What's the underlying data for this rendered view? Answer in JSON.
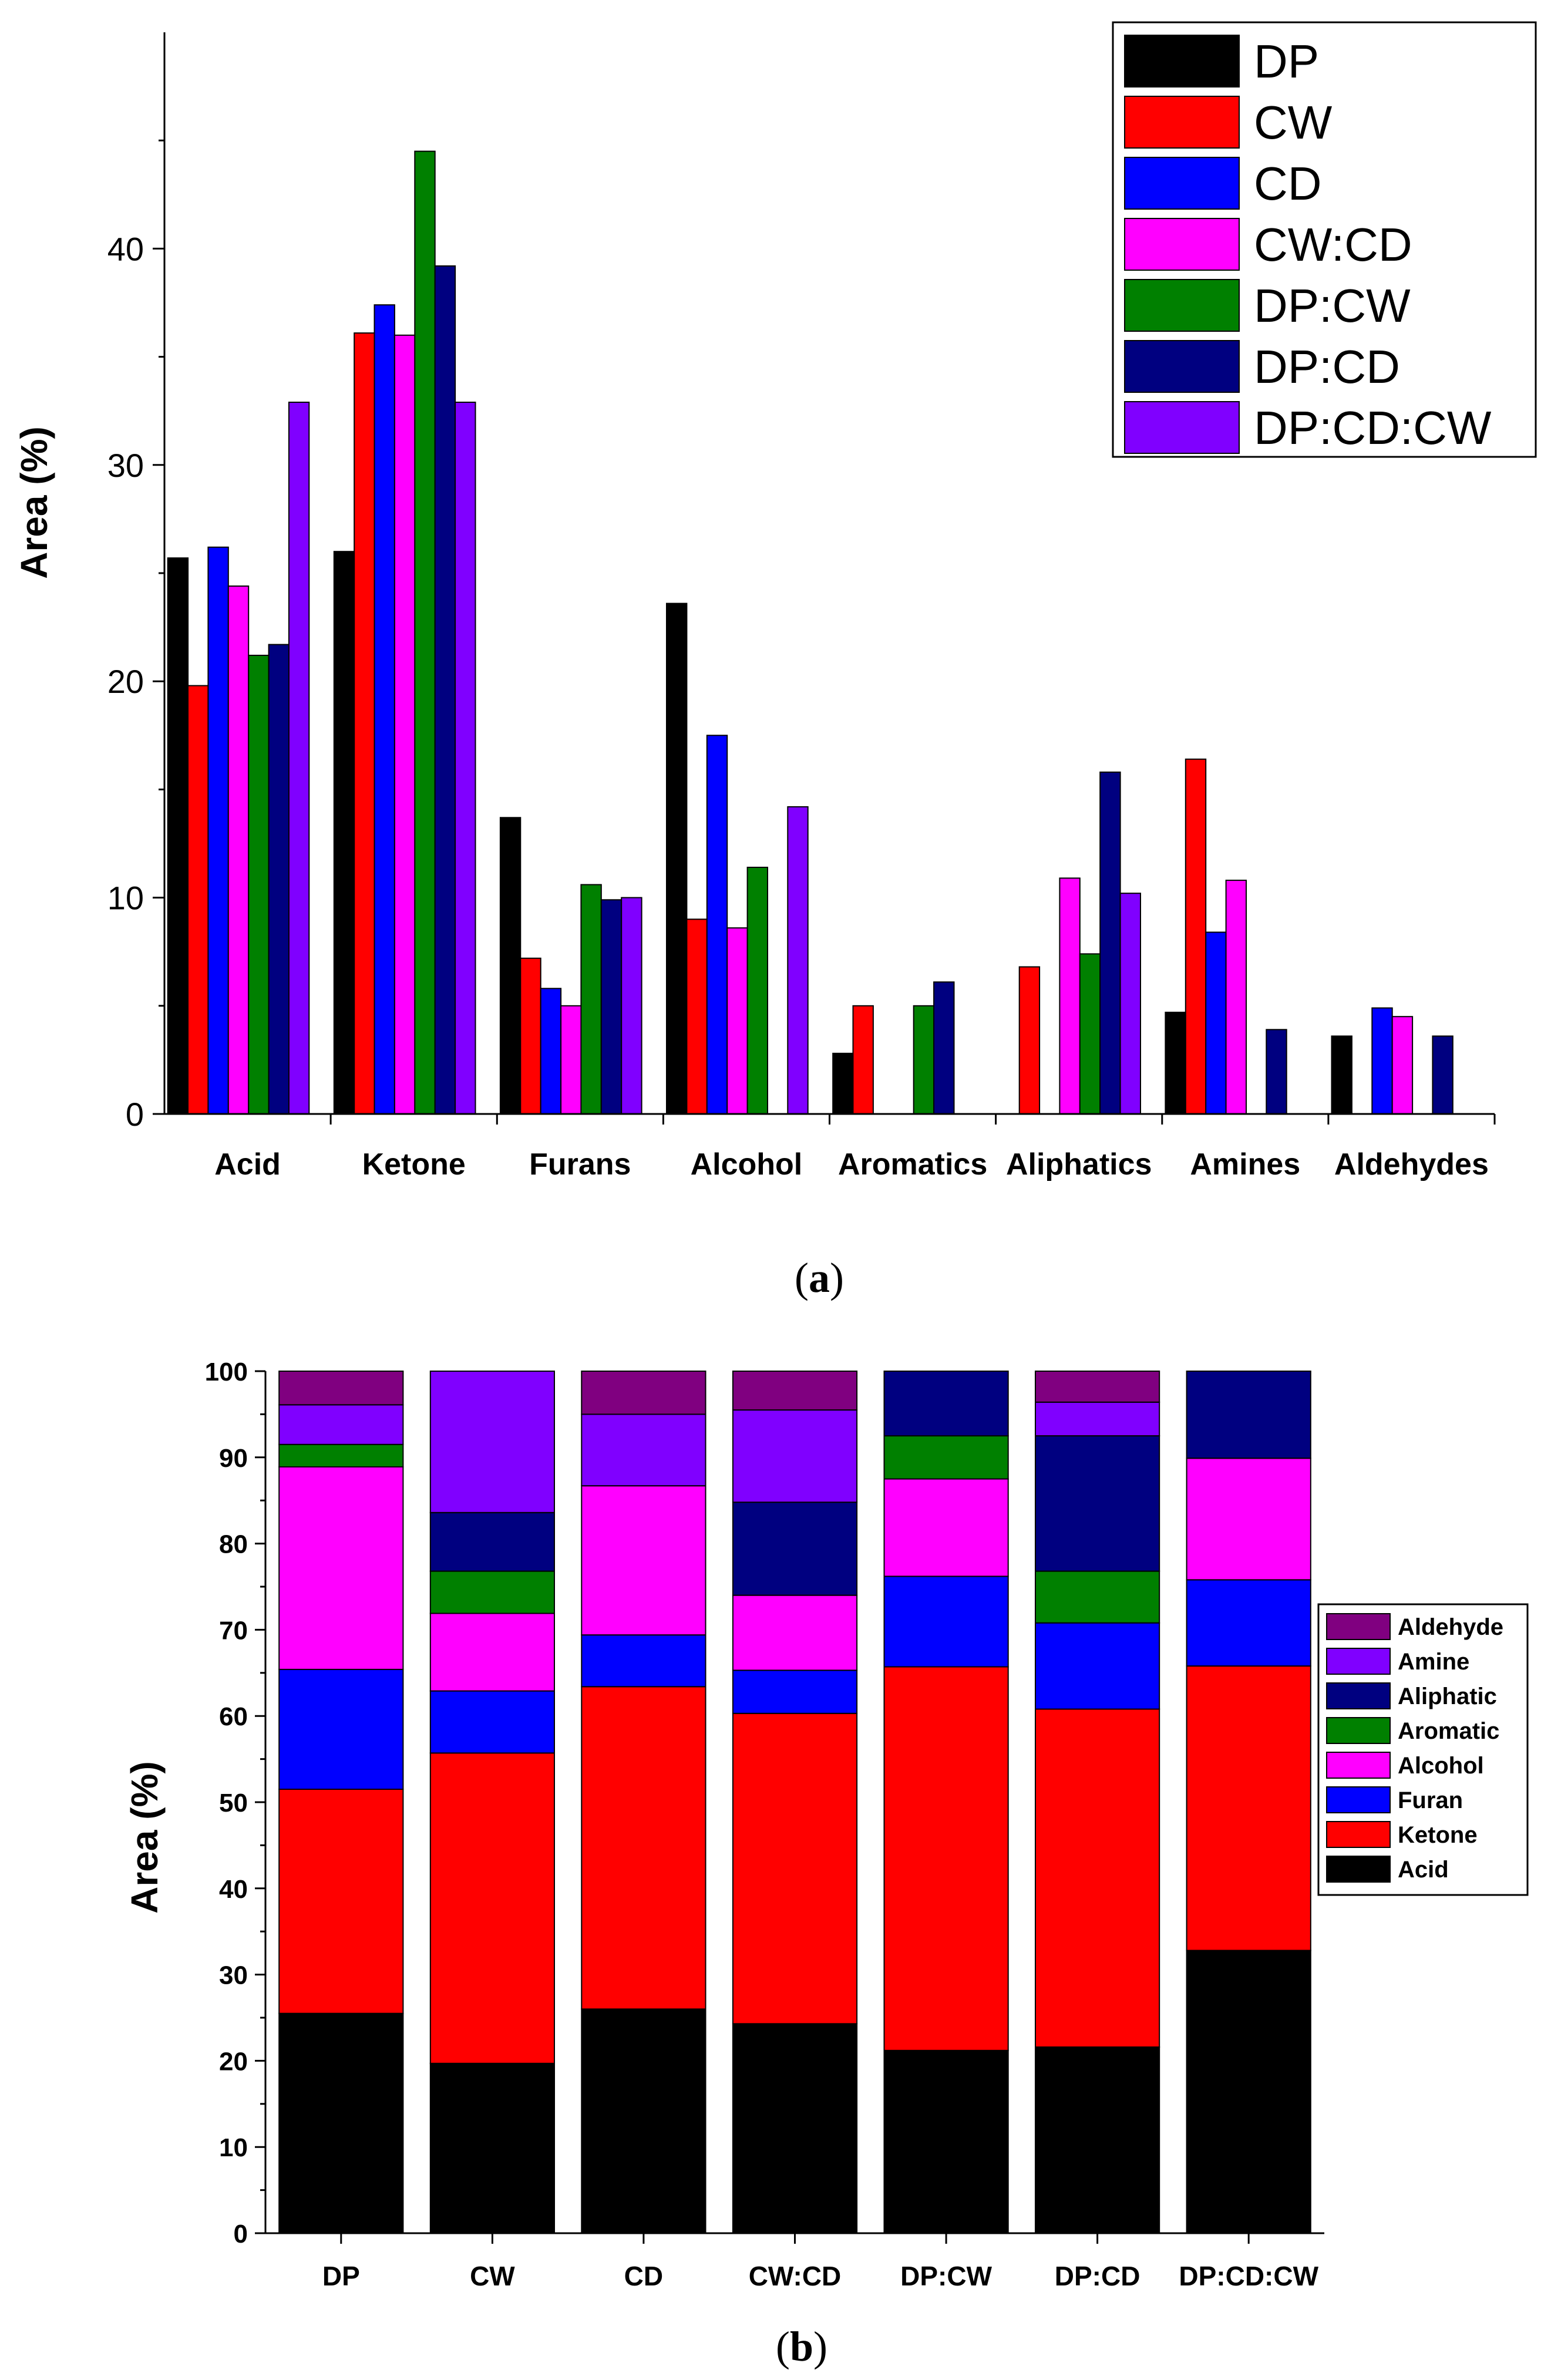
{
  "chart_data": [
    {
      "type": "bar",
      "panel_letter": "a",
      "title": "",
      "xlabel": "",
      "ylabel": "Area (%)",
      "ylim": [
        0,
        50
      ],
      "yticks": [
        0,
        10,
        20,
        30,
        40
      ],
      "grid": false,
      "legend_position": "top-right",
      "categories": [
        "Acid",
        "Ketone",
        "Furans",
        "Alcohol",
        "Aromatics",
        "Aliphatics",
        "Amines",
        "Aldehydes"
      ],
      "series": [
        {
          "name": "DP",
          "color": "#000000",
          "values": [
            25.7,
            26.0,
            13.7,
            23.6,
            2.8,
            0,
            4.7,
            3.6
          ]
        },
        {
          "name": "CW",
          "color": "#ff0000",
          "values": [
            19.8,
            36.1,
            7.2,
            9.0,
            5.0,
            6.8,
            16.4,
            0
          ]
        },
        {
          "name": "CD",
          "color": "#0000ff",
          "values": [
            26.2,
            37.4,
            5.8,
            17.5,
            0,
            0,
            8.4,
            4.9
          ]
        },
        {
          "name": "CW:CD",
          "color": "#ff00ff",
          "values": [
            24.4,
            36.0,
            5.0,
            8.6,
            0,
            10.9,
            10.8,
            4.5
          ]
        },
        {
          "name": "DP:CW",
          "color": "#008000",
          "values": [
            21.2,
            44.5,
            10.6,
            11.4,
            5.0,
            7.4,
            0,
            0
          ]
        },
        {
          "name": "DP:CD",
          "color": "#000080",
          "values": [
            21.7,
            39.2,
            9.9,
            0,
            6.1,
            15.8,
            3.9,
            3.6
          ]
        },
        {
          "name": "DP:CD:CW",
          "color": "#8000ff",
          "values": [
            32.9,
            32.9,
            10.0,
            14.2,
            0,
            10.2,
            0,
            0
          ]
        }
      ]
    },
    {
      "type": "stacked_bar",
      "panel_letter": "b",
      "title": "",
      "xlabel": "",
      "ylabel": "Area (%)",
      "ylim": [
        0,
        100
      ],
      "yticks": [
        0,
        10,
        20,
        30,
        40,
        50,
        60,
        70,
        80,
        90,
        100
      ],
      "grid": false,
      "legend_position": "right",
      "categories": [
        "DP",
        "CW",
        "CD",
        "CW:CD",
        "DP:CW",
        "DP:CD",
        "DP:CD:CW"
      ],
      "series": [
        {
          "name": "Acid",
          "color": "#000000",
          "values": [
            25.5,
            19.7,
            26.0,
            24.3,
            21.2,
            21.6,
            32.8
          ]
        },
        {
          "name": "Ketone",
          "color": "#ff0000",
          "values": [
            26.0,
            36.0,
            37.4,
            36.0,
            44.5,
            39.2,
            33.0
          ]
        },
        {
          "name": "Furan",
          "color": "#0000ff",
          "values": [
            13.9,
            7.2,
            6.0,
            5.0,
            10.5,
            10.0,
            10.0
          ]
        },
        {
          "name": "Alcohol",
          "color": "#ff00ff",
          "values": [
            23.5,
            9.0,
            17.3,
            8.7,
            11.3,
            0,
            14.1
          ]
        },
        {
          "name": "Aromatic",
          "color": "#008000",
          "values": [
            2.6,
            4.9,
            0,
            0,
            5.0,
            6.0,
            0
          ]
        },
        {
          "name": "Aliphatic",
          "color": "#000080",
          "values": [
            0,
            6.8,
            0,
            10.8,
            7.5,
            15.7,
            10.1
          ]
        },
        {
          "name": "Amine",
          "color": "#8000ff",
          "values": [
            4.6,
            16.4,
            8.3,
            10.7,
            0,
            3.9,
            0
          ]
        },
        {
          "name": "Aldehyde",
          "color": "#800080",
          "values": [
            3.9,
            0,
            5.0,
            4.5,
            0,
            3.6,
            0
          ]
        }
      ],
      "legend_order": [
        "Aldehyde",
        "Amine",
        "Aliphatic",
        "Aromatic",
        "Alcohol",
        "Furan",
        "Ketone",
        "Acid"
      ]
    }
  ]
}
